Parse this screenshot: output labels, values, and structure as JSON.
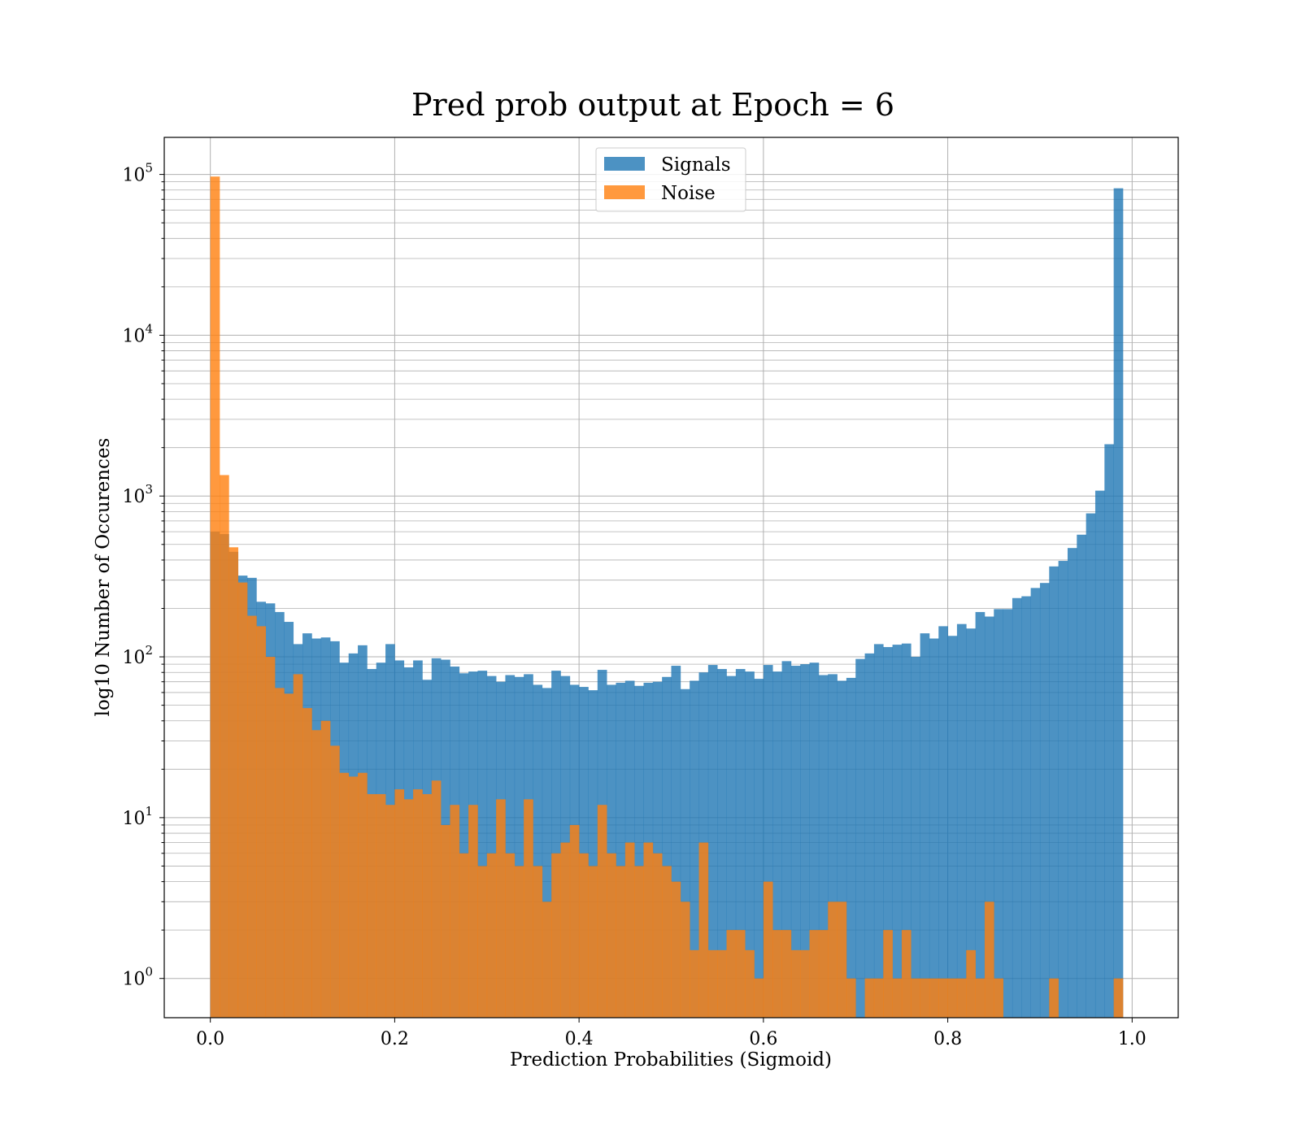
{
  "chart_data": {
    "type": "bar",
    "title": "Pred prob output at Epoch = 6",
    "xlabel": "Prediction Probabilities (Sigmoid)",
    "ylabel": "log10 Number of Occurences",
    "yscale": "log",
    "xlim": [
      -0.05,
      1.05
    ],
    "ylim": [
      0.57,
      170000
    ],
    "x_ticks": [
      "0.0",
      "0.2",
      "0.4",
      "0.6",
      "0.8",
      "1.0"
    ],
    "y_ticks": [
      {
        "base": "10",
        "exp": "0"
      },
      {
        "base": "10",
        "exp": "1"
      },
      {
        "base": "10",
        "exp": "2"
      },
      {
        "base": "10",
        "exp": "3"
      },
      {
        "base": "10",
        "exp": "4"
      },
      {
        "base": "10",
        "exp": "5"
      }
    ],
    "grid": true,
    "legend_position": "top-center",
    "bin_width": 0.01,
    "bins_start": 0.0,
    "series": [
      {
        "name": "Signals",
        "color": "#1f77b4",
        "values": [
          600,
          580,
          450,
          320,
          310,
          220,
          215,
          190,
          165,
          120,
          140,
          130,
          132,
          125,
          92,
          105,
          118,
          84,
          92,
          120,
          95,
          86,
          95,
          72,
          98,
          96,
          87,
          79,
          81,
          82,
          76,
          70,
          77,
          75,
          78,
          67,
          64,
          82,
          76,
          67,
          65,
          62,
          83,
          67,
          69,
          71,
          66,
          69,
          70,
          75,
          88,
          63,
          71,
          80,
          89,
          84,
          76,
          84,
          81,
          73,
          89,
          81,
          94,
          88,
          90,
          92,
          77,
          78,
          71,
          74,
          97,
          105,
          120,
          115,
          119,
          121,
          100,
          140,
          130,
          155,
          135,
          160,
          150,
          190,
          178,
          198,
          198,
          232,
          238,
          268,
          288,
          365,
          395,
          475,
          575,
          780,
          1080,
          2100,
          82000,
          0
        ]
      },
      {
        "name": "Noise",
        "color": "#ff7f0e",
        "values": [
          97000,
          1350,
          480,
          290,
          180,
          155,
          100,
          64,
          59,
          78,
          48,
          35,
          40,
          28,
          19,
          18,
          19,
          14,
          14,
          12,
          15,
          13,
          15,
          14,
          17,
          9,
          12,
          6,
          12,
          5,
          6,
          13,
          6,
          5,
          13,
          5,
          3,
          6,
          7,
          9,
          6,
          5,
          12,
          6,
          5,
          7,
          5,
          7,
          6,
          5,
          4,
          3,
          1.5,
          7,
          1.5,
          1.5,
          2,
          2,
          1.5,
          1,
          4,
          2,
          2,
          1.5,
          1.5,
          2,
          2,
          3,
          3,
          1,
          0.5,
          1,
          1,
          2,
          1,
          2,
          1,
          1,
          1,
          1,
          1,
          1,
          1.5,
          1,
          3,
          1,
          0.5,
          0.5,
          0.5,
          0.5,
          0.5,
          1,
          0.5,
          0.5,
          0.5,
          0.5,
          0.5,
          0.5,
          1,
          0
        ]
      }
    ]
  }
}
